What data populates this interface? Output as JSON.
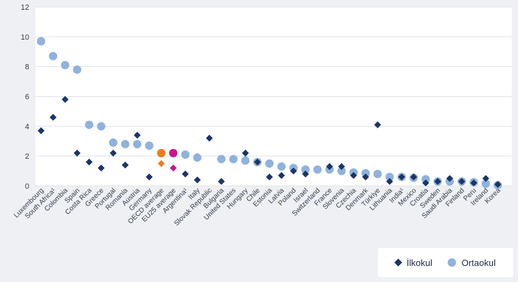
{
  "chart_data": {
    "type": "scatter",
    "ylim": [
      0,
      12
    ],
    "yticks": [
      0,
      2,
      4,
      6,
      8,
      10,
      12
    ],
    "grid": true,
    "legend_position": "bottom-right",
    "categories": [
      "Luxembourg",
      "South Africa¹",
      "Colombia",
      "Spain",
      "Costa Rica",
      "Greece",
      "Portugal",
      "Romania",
      "Austria",
      "Germany",
      "OECD average",
      "EU25 average",
      "Argentina¹",
      "Italy",
      "Slovak Republic",
      "Bulgaria",
      "United States",
      "Hungary",
      "Chile",
      "Estonia",
      "Latvia",
      "Poland",
      "Israel",
      "Switzerland",
      "France",
      "Slovenia",
      "Czechia",
      "Denmark",
      "Türkiye",
      "Lithuania",
      "India¹",
      "Mexico",
      "Croatia",
      "Sweden",
      "Saudi Arabia",
      "Finland",
      "Peru",
      "Ireland",
      "Korea"
    ],
    "series": [
      {
        "name": "İlkokul",
        "color": "#1c3566",
        "marker": "diamond",
        "values": [
          3.7,
          4.6,
          5.8,
          2.2,
          1.6,
          1.2,
          2.2,
          1.4,
          3.4,
          0.6,
          1.5,
          1.2,
          0.8,
          0.4,
          3.2,
          0.3,
          null,
          2.2,
          1.6,
          0.6,
          0.7,
          1.0,
          0.8,
          null,
          1.3,
          1.3,
          0.7,
          0.6,
          4.1,
          0.3,
          0.6,
          0.6,
          0.2,
          0.3,
          0.5,
          0.3,
          0.2,
          0.5,
          0.1
        ],
        "highlight": {
          "10": "#ee7b1b",
          "11": "#c9168c"
        }
      },
      {
        "name": "Ortaokul",
        "color": "#8fb2de",
        "marker": "circle",
        "values": [
          9.7,
          8.7,
          8.1,
          7.8,
          4.1,
          4.0,
          2.9,
          2.8,
          2.8,
          2.7,
          2.2,
          2.2,
          2.1,
          1.9,
          null,
          1.8,
          1.8,
          1.7,
          1.6,
          1.5,
          1.3,
          1.2,
          1.1,
          1.1,
          1.1,
          1.0,
          0.9,
          0.85,
          0.8,
          0.6,
          0.6,
          0.55,
          0.45,
          0.3,
          0.3,
          0.3,
          0.25,
          0.15,
          0.05
        ],
        "highlight": {
          "10": "#ee7b1b",
          "11": "#c9168c"
        }
      }
    ]
  },
  "legend": {
    "primary_label": "İlkokul",
    "lower_secondary_label": "Ortaokul"
  }
}
